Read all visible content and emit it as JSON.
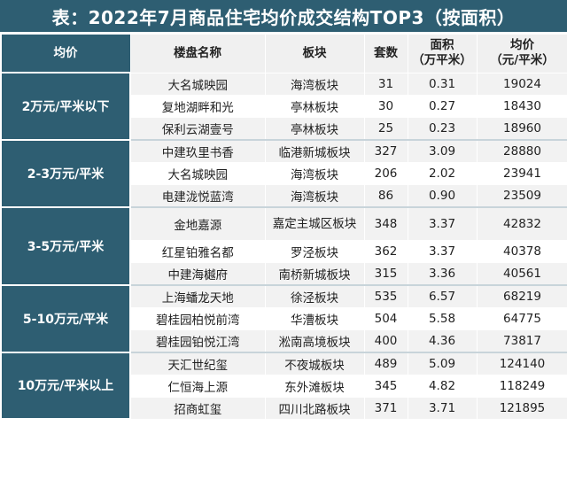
{
  "title": "表：2022年7月商品住宅均价成交结构TOP3（按面积）",
  "colors": {
    "header_bg": "#2e5e72",
    "header_text": "#ffffff",
    "row_bg": "#f2f2f2"
  },
  "headers": {
    "category": "均价",
    "name": "楼盘名称",
    "district": "板块",
    "units": "套数",
    "area": "面积\n（万平米）",
    "price": "均价\n（元/平米）"
  },
  "groups": [
    {
      "category": "2万元/平米以下",
      "rows": [
        {
          "name": "大名城映园",
          "district": "海湾板块",
          "units": "31",
          "area": "0.31",
          "price": "19024"
        },
        {
          "name": "复地湖畔和光",
          "district": "亭林板块",
          "units": "30",
          "area": "0.27",
          "price": "18430"
        },
        {
          "name": "保利云湖壹号",
          "district": "亭林板块",
          "units": "25",
          "area": "0.23",
          "price": "18960"
        }
      ]
    },
    {
      "category": "2-3万元/平米",
      "rows": [
        {
          "name": "中建玖里书香",
          "district": "临港新城板块",
          "units": "327",
          "area": "3.09",
          "price": "28880"
        },
        {
          "name": "大名城映园",
          "district": "海湾板块",
          "units": "206",
          "area": "2.02",
          "price": "23941"
        },
        {
          "name": "电建泷悦蓝湾",
          "district": "海湾板块",
          "units": "86",
          "area": "0.90",
          "price": "23509"
        }
      ]
    },
    {
      "category": "3-5万元/平米",
      "rows": [
        {
          "name": "金地嘉源",
          "district": "嘉定主城区板块",
          "units": "348",
          "area": "3.37",
          "price": "42832"
        },
        {
          "name": "红星铂雅名都",
          "district": "罗泾板块",
          "units": "362",
          "area": "3.37",
          "price": "40378"
        },
        {
          "name": "中建海樾府",
          "district": "南桥新城板块",
          "units": "315",
          "area": "3.36",
          "price": "40561"
        }
      ]
    },
    {
      "category": "5-10万元/平米",
      "rows": [
        {
          "name": "上海蟠龙天地",
          "district": "徐泾板块",
          "units": "535",
          "area": "6.57",
          "price": "68219"
        },
        {
          "name": "碧桂园柏悦前湾",
          "district": "华漕板块",
          "units": "504",
          "area": "5.58",
          "price": "64775"
        },
        {
          "name": "碧桂园铂悦江湾",
          "district": "淞南高境板块",
          "units": "400",
          "area": "4.36",
          "price": "73817"
        }
      ]
    },
    {
      "category": "10万元/平米以上",
      "rows": [
        {
          "name": "天汇世纪玺",
          "district": "不夜城板块",
          "units": "489",
          "area": "5.09",
          "price": "124140"
        },
        {
          "name": "仁恒海上源",
          "district": "东外滩板块",
          "units": "345",
          "area": "4.82",
          "price": "118249"
        },
        {
          "name": "招商虹玺",
          "district": "四川北路板块",
          "units": "371",
          "area": "3.71",
          "price": "121895"
        }
      ]
    }
  ]
}
